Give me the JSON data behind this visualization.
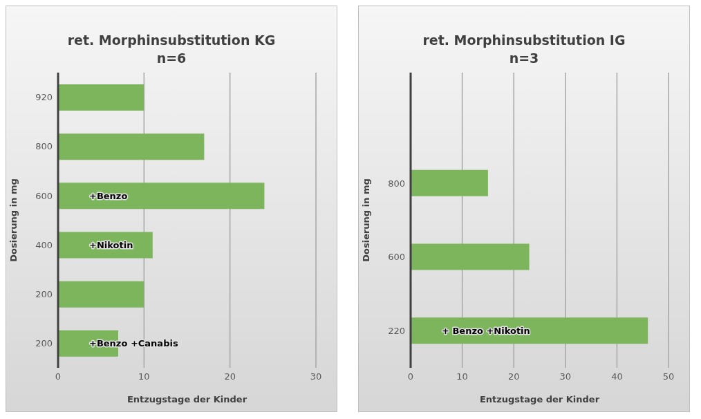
{
  "chart_data": [
    {
      "type": "bar",
      "orientation": "horizontal",
      "title": "ret. Morphinsubstitution KG",
      "subtitle": "n=6",
      "xlabel": "Entzugstage der Kinder",
      "ylabel": "Dosierung in mg",
      "categories": [
        "920",
        "800",
        "600",
        "400",
        "200",
        "200"
      ],
      "values": [
        10,
        17,
        24,
        11,
        10,
        7
      ],
      "color": "#7db55c",
      "value_labels": [
        null,
        null,
        "+Benzo",
        "+Nikotin",
        null,
        "+Benzo +Canabis"
      ],
      "xlim": [
        0,
        30
      ],
      "xticks": [
        0,
        10,
        20,
        30
      ],
      "grid": "x"
    },
    {
      "type": "bar",
      "orientation": "horizontal",
      "title": "ret. Morphinsubstitution IG",
      "subtitle": "n=3",
      "xlabel": "Entzugstage der Kinder",
      "ylabel": "Dosierung in mg",
      "categories": [
        null,
        "800",
        "600",
        "220"
      ],
      "values": [
        null,
        15,
        23,
        46
      ],
      "color": "#7db55c",
      "value_labels": [
        null,
        null,
        null,
        "+ Benzo +Nikotin"
      ],
      "xlim": [
        0,
        50
      ],
      "xticks": [
        0,
        10,
        20,
        30,
        40,
        50
      ],
      "grid": "x"
    }
  ]
}
